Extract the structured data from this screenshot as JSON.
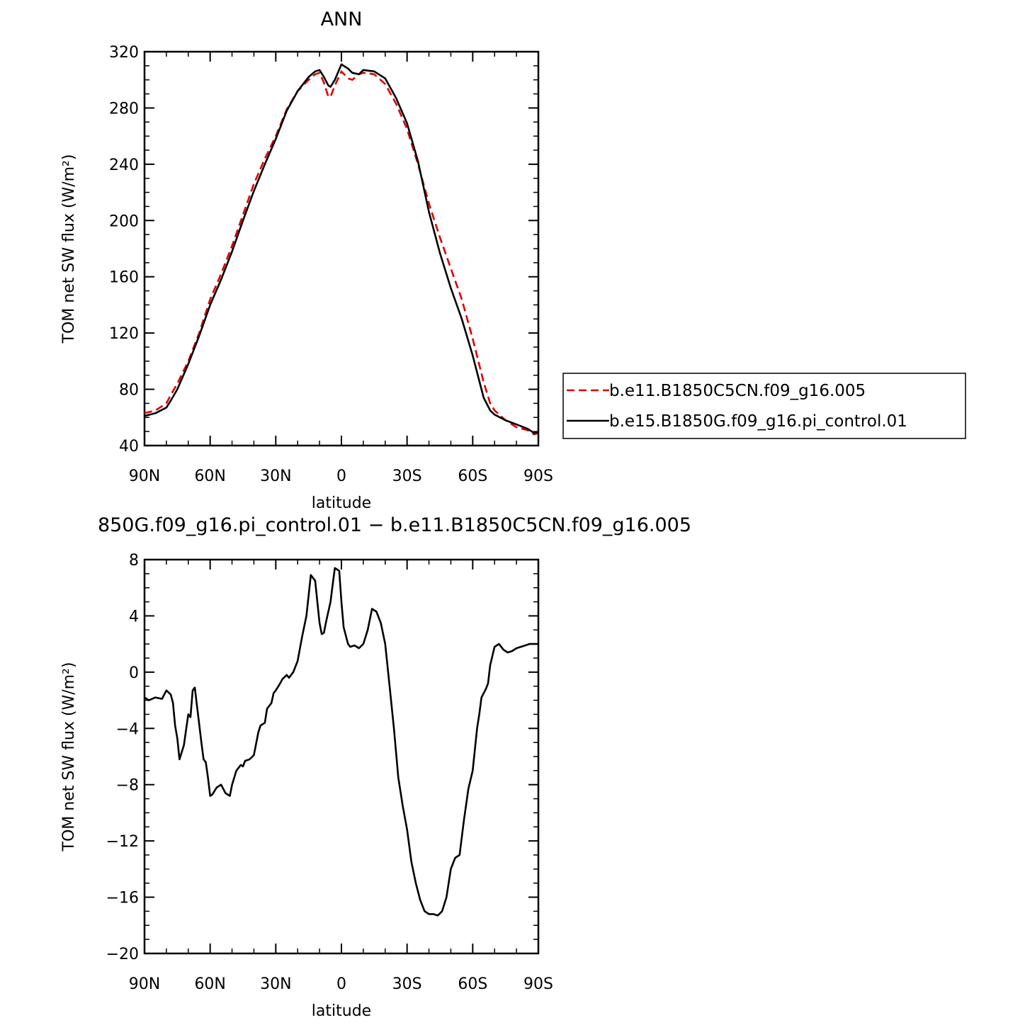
{
  "chart_data": [
    {
      "type": "line",
      "title": "ANN",
      "xlabel": "latitude",
      "ylabel": "TOM net SW flux (W/m²)",
      "ylim": [
        40,
        320
      ],
      "yticks": [
        40,
        80,
        120,
        160,
        200,
        240,
        280,
        320
      ],
      "xlim": [
        90,
        -90
      ],
      "xticks": [
        90,
        60,
        30,
        0,
        -30,
        -60,
        -90
      ],
      "xtick_labels": [
        "90N",
        "60N",
        "30N",
        "0",
        "30S",
        "60S",
        "90S"
      ],
      "legend": {
        "placement": "right",
        "entries": [
          "b.e11.B1850C5CN.f09_g16.005",
          "b.e15.B1850G.f09_g16.pi_control.01"
        ]
      },
      "series": [
        {
          "name": "b.e11.B1850C5CN.f09_g16.005",
          "color": "#dd0000",
          "style": "dashed",
          "x": [
            90,
            85,
            80,
            78,
            75,
            70,
            65,
            60,
            55,
            50,
            45,
            40,
            35,
            30,
            25,
            20,
            15,
            12,
            10,
            8,
            6,
            5,
            3,
            0,
            -3,
            -5,
            -8,
            -10,
            -15,
            -20,
            -25,
            -30,
            -35,
            -40,
            -45,
            -50,
            -55,
            -60,
            -65,
            -68,
            -70,
            -75,
            -80,
            -85,
            -88,
            -90
          ],
          "y": [
            63,
            65,
            70,
            76,
            84,
            100,
            120,
            144,
            162,
            182,
            204,
            226,
            244,
            260,
            279,
            292,
            300,
            304,
            305,
            298,
            288,
            288,
            296,
            306,
            301,
            300,
            304,
            305,
            304,
            297,
            283,
            265,
            240,
            212,
            188,
            166,
            144,
            116,
            85,
            70,
            65,
            58,
            53,
            51,
            48,
            49
          ]
        },
        {
          "name": "b.e15.B1850G.f09_g16.pi_control.01",
          "color": "#000000",
          "style": "solid",
          "x": [
            90,
            85,
            80,
            78,
            75,
            70,
            65,
            60,
            55,
            50,
            45,
            40,
            35,
            30,
            25,
            20,
            15,
            12,
            10,
            8,
            6,
            5,
            3,
            0,
            -3,
            -5,
            -8,
            -10,
            -15,
            -20,
            -25,
            -30,
            -35,
            -40,
            -45,
            -50,
            -55,
            -60,
            -65,
            -68,
            -70,
            -75,
            -80,
            -85,
            -88,
            -90
          ],
          "y": [
            61,
            63,
            67,
            72,
            80,
            98,
            118,
            140,
            158,
            178,
            200,
            221,
            240,
            258,
            278,
            292,
            302,
            306,
            307,
            302,
            296,
            295,
            300,
            311,
            308,
            305,
            304,
            307,
            306,
            301,
            287,
            269,
            242,
            206,
            177,
            152,
            130,
            104,
            74,
            65,
            62,
            58,
            55,
            52,
            49,
            49
          ]
        }
      ]
    },
    {
      "type": "line",
      "title": "850G.f09_g16.pi_control.01 − b.e11.B1850C5CN.f09_g16.005",
      "xlabel": "latitude",
      "ylabel": "TOM net SW flux (W/m²)",
      "ylim": [
        -20,
        8
      ],
      "yticks": [
        -20,
        -16,
        -12,
        -8,
        -4,
        0,
        4,
        8
      ],
      "ytick_labels": [
        "−20",
        "−16",
        "−12",
        "−8",
        "−4",
        "0",
        "4",
        "8"
      ],
      "xlim": [
        90,
        -90
      ],
      "xticks": [
        90,
        60,
        30,
        0,
        -30,
        -60,
        -90
      ],
      "xtick_labels": [
        "90N",
        "60N",
        "30N",
        "0",
        "30S",
        "60S",
        "90S"
      ],
      "series": [
        {
          "color": "#000000",
          "style": "solid",
          "x": [
            90,
            88,
            85,
            82,
            80,
            78,
            77,
            76,
            75,
            74,
            72,
            70,
            69,
            68,
            67,
            66,
            64,
            63,
            62,
            61,
            60,
            59,
            57,
            55,
            53,
            51,
            50,
            48,
            46,
            45,
            44,
            42,
            40,
            38,
            37,
            35,
            34,
            32,
            31,
            30,
            28,
            27,
            25,
            24,
            22,
            20,
            18,
            16,
            14,
            12,
            10,
            9,
            8,
            7,
            5,
            4,
            3,
            1,
            0,
            -1,
            -3,
            -4,
            -6,
            -8,
            -10,
            -12,
            -14,
            -16,
            -18,
            -20,
            -22,
            -24,
            -26,
            -28,
            -30,
            -32,
            -34,
            -36,
            -38,
            -40,
            -42,
            -44,
            -46,
            -48,
            -50,
            -52,
            -54,
            -56,
            -58,
            -60,
            -62,
            -63,
            -64,
            -66,
            -67,
            -68,
            -70,
            -72,
            -74,
            -76,
            -78,
            -80,
            -82,
            -84,
            -86,
            -88,
            -90
          ],
          "y": [
            -1.8,
            -2.0,
            -1.8,
            -1.9,
            -1.3,
            -1.6,
            -2.2,
            -3.8,
            -4.7,
            -6.2,
            -5.2,
            -3.0,
            -3.2,
            -1.3,
            -1.1,
            -2.4,
            -5.0,
            -6.2,
            -6.4,
            -7.5,
            -8.8,
            -8.7,
            -8.2,
            -8.0,
            -8.6,
            -8.8,
            -8.0,
            -7.0,
            -6.6,
            -6.7,
            -6.3,
            -6.2,
            -5.9,
            -4.3,
            -3.8,
            -3.6,
            -2.6,
            -2.2,
            -1.5,
            -1.3,
            -0.8,
            -0.5,
            -0.2,
            -0.4,
            0.0,
            0.8,
            2.5,
            4.0,
            6.9,
            6.5,
            3.5,
            2.7,
            2.8,
            3.6,
            5.0,
            6.2,
            7.4,
            7.2,
            5.0,
            3.2,
            2.0,
            1.8,
            1.9,
            1.7,
            2.0,
            3.0,
            4.5,
            4.3,
            3.5,
            2.0,
            -1.0,
            -4.0,
            -7.5,
            -9.5,
            -11.2,
            -13.5,
            -15.0,
            -16.2,
            -17.0,
            -17.2,
            -17.2,
            -17.3,
            -17.0,
            -16.0,
            -14.0,
            -13.2,
            -13.0,
            -10.5,
            -8.3,
            -7.0,
            -4.0,
            -3.0,
            -1.8,
            -1.2,
            -0.8,
            0.5,
            1.8,
            2.0,
            1.6,
            1.4,
            1.5,
            1.7,
            1.8,
            1.9,
            2.0,
            2.0,
            2.0
          ]
        }
      ]
    }
  ]
}
